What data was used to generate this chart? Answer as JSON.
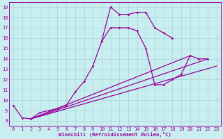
{
  "xlabel": "Windchill (Refroidissement éolien,°C)",
  "xlim": [
    -0.5,
    23.5
  ],
  "ylim": [
    7.5,
    19.5
  ],
  "xticks": [
    0,
    1,
    2,
    3,
    4,
    5,
    6,
    7,
    8,
    9,
    10,
    11,
    12,
    13,
    14,
    15,
    16,
    17,
    18,
    19,
    20,
    21,
    22,
    23
  ],
  "yticks": [
    8,
    9,
    10,
    11,
    12,
    13,
    14,
    15,
    16,
    17,
    18,
    19
  ],
  "background_color": "#c8eef0",
  "grid_color": "#b0d8dc",
  "line_color": "#990099",
  "curve1_x": [
    0,
    1,
    2,
    3,
    4,
    5,
    6,
    7,
    8,
    9,
    10,
    11,
    12,
    13,
    14,
    15,
    16,
    17,
    18,
    19,
    20,
    21,
    22
  ],
  "curve1_y": [
    9.5,
    8.3,
    8.2,
    8.8,
    9.0,
    9.2,
    9.5,
    10.8,
    11.8,
    13.3,
    15.7,
    17.0,
    17.0,
    17.0,
    16.7,
    15.0,
    11.5,
    11.5,
    12.0,
    12.5,
    14.3,
    14.0,
    14.0
  ],
  "curve2_x": [
    10,
    11,
    12,
    13,
    14,
    15,
    16,
    17,
    18
  ],
  "curve2_y": [
    15.7,
    19.0,
    18.3,
    18.3,
    18.5,
    18.5,
    17.0,
    16.5,
    16.0
  ],
  "straight_lines": [
    {
      "x": [
        2,
        23
      ],
      "y": [
        8.2,
        13.3
      ]
    },
    {
      "x": [
        2,
        20
      ],
      "y": [
        8.2,
        14.3
      ]
    },
    {
      "x": [
        2,
        22
      ],
      "y": [
        8.2,
        14.0
      ]
    }
  ]
}
